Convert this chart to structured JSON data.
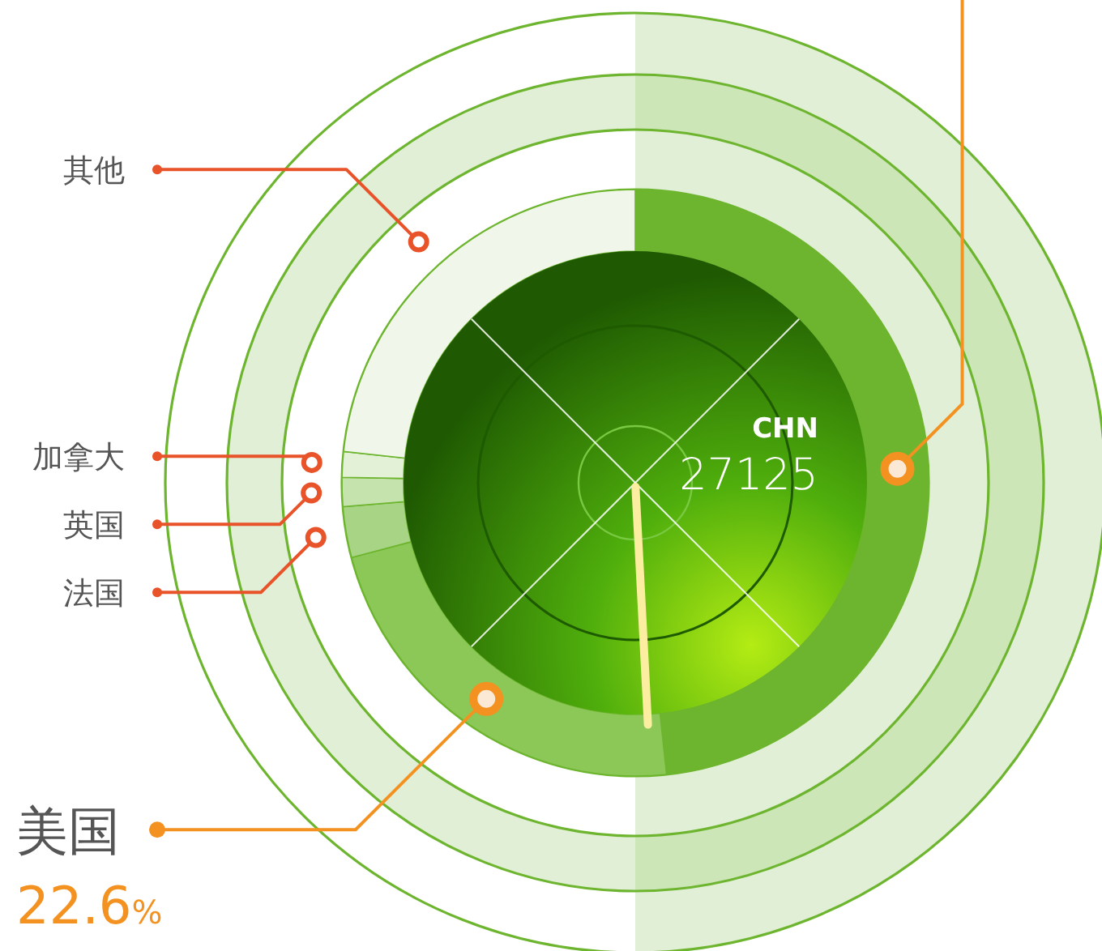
{
  "chart_data": {
    "type": "donut",
    "categories": [
      null,
      "美国",
      "法国",
      "英国",
      "加拿大",
      "其他"
    ],
    "values": [
      48.3,
      22.6,
      2.8,
      1.6,
      1.4,
      23.3
    ],
    "colors": [
      "#6db52e",
      "#8cc857",
      "#a8d485",
      "#c5e3ad",
      "#e3f1d7",
      "#f0f7ea"
    ],
    "value_labels": [
      null,
      "22.6%",
      null,
      null,
      null,
      null
    ],
    "annotations": [
      "CHN",
      "27125"
    ]
  }
}
